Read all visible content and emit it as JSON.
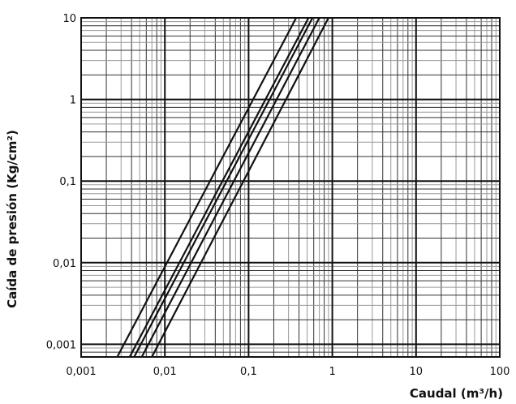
{
  "chart_data": {
    "type": "line",
    "x_label": "Caudal (m³/h)",
    "y_label": "Caída de presión (Kg/cm²)",
    "xscale": "log",
    "yscale": "log",
    "xlim": [
      0.001,
      100
    ],
    "ylim": [
      0.0007,
      10
    ],
    "xticks": [
      {
        "value": 0.001,
        "label": "0,001"
      },
      {
        "value": 0.01,
        "label": "0,01"
      },
      {
        "value": 0.1,
        "label": "0,1"
      },
      1,
      10,
      100
    ],
    "yticks": [
      {
        "value": 0.001,
        "label": "0,001"
      },
      {
        "value": 0.01,
        "label": "0,01"
      },
      {
        "value": 0.1,
        "label": "0,1"
      },
      1,
      10
    ],
    "grid": true,
    "series": [
      {
        "color": "#111111",
        "x": [
          0.0027,
          0.37
        ],
        "values": [
          0.0007,
          10
        ]
      },
      {
        "color": "#111111",
        "x": [
          0.0038,
          0.52
        ],
        "values": [
          0.0007,
          10
        ]
      },
      {
        "color": "#111111",
        "x": [
          0.0043,
          0.58
        ],
        "values": [
          0.0007,
          10
        ]
      },
      {
        "color": "#111111",
        "x": [
          0.0053,
          0.7
        ],
        "values": [
          0.0007,
          10
        ]
      },
      {
        "color": "#111111",
        "x": [
          0.007,
          0.9
        ],
        "values": [
          0.0007,
          10
        ]
      }
    ]
  }
}
